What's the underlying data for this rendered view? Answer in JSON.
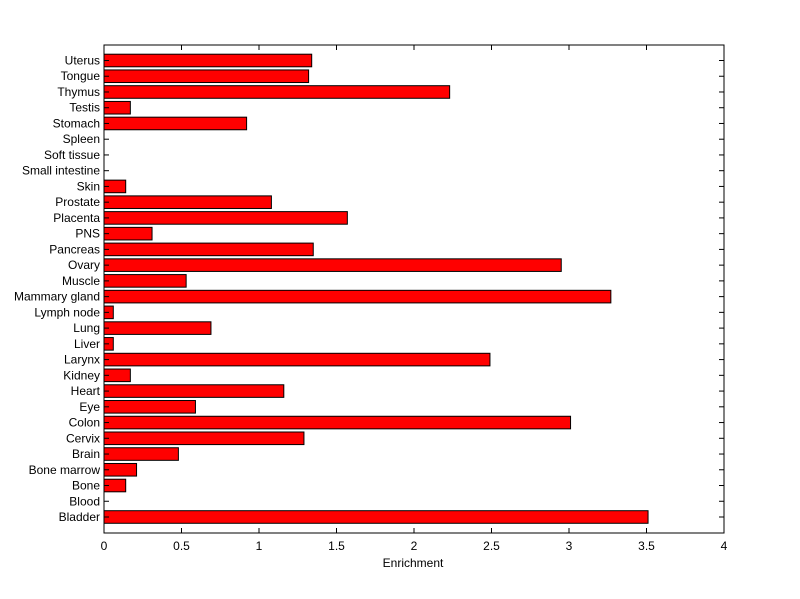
{
  "chart_data": {
    "type": "bar",
    "orientation": "horizontal",
    "title": "",
    "xlabel": "Enrichment",
    "ylabel": "",
    "xlim": [
      0,
      4
    ],
    "xticks": [
      {
        "value": 0,
        "label": "0"
      },
      {
        "value": 0.5,
        "label": "0.5"
      },
      {
        "value": 1,
        "label": "1"
      },
      {
        "value": 1.5,
        "label": "1.5"
      },
      {
        "value": 2,
        "label": "2"
      },
      {
        "value": 2.5,
        "label": "2.5"
      },
      {
        "value": 3,
        "label": "3"
      },
      {
        "value": 3.5,
        "label": "3.5"
      },
      {
        "value": 4,
        "label": "4"
      }
    ],
    "grid": false,
    "legend": "none",
    "bar_color": "#ff0000",
    "edge_color": "#000000",
    "categories": [
      "Bladder",
      "Blood",
      "Bone",
      "Bone marrow",
      "Brain",
      "Cervix",
      "Colon",
      "Eye",
      "Heart",
      "Kidney",
      "Larynx",
      "Liver",
      "Lung",
      "Lymph node",
      "Mammary gland",
      "Muscle",
      "Ovary",
      "Pancreas",
      "PNS",
      "Placenta",
      "Prostate",
      "Skin",
      "Small intestine",
      "Soft tissue",
      "Spleen",
      "Stomach",
      "Testis",
      "Thymus",
      "Tongue",
      "Uterus"
    ],
    "values": [
      3.51,
      0,
      0.14,
      0.21,
      0.48,
      1.29,
      3.01,
      0.59,
      1.16,
      0.17,
      2.49,
      0.06,
      0.69,
      0.06,
      3.27,
      0.53,
      2.95,
      1.35,
      0.31,
      1.57,
      1.08,
      0.14,
      0,
      0,
      0,
      0.92,
      0.17,
      2.23,
      1.32,
      1.34
    ]
  }
}
